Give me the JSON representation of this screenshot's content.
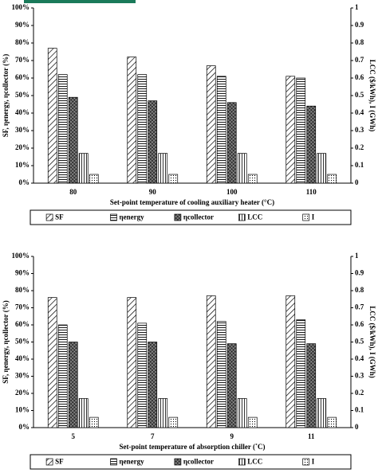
{
  "chart_data": [
    {
      "type": "bar",
      "x_label": "Set-point temperature of cooling auxiliary heater (°C)",
      "y_label": "SF, ηenergy, ηcollector (%)",
      "y2_label": "LCC ($/kWh), I (GWh)",
      "categories": [
        "80",
        "90",
        "100",
        "110"
      ],
      "series": [
        {
          "name": "SF",
          "color": "#000000",
          "pattern": "diag",
          "values": [
            77,
            72,
            67,
            61
          ]
        },
        {
          "name": "ηenergy",
          "color": "#000000",
          "pattern": "horiz",
          "values": [
            62,
            62,
            61,
            60
          ]
        },
        {
          "name": "ηcollector",
          "color": "#000000",
          "pattern": "cross",
          "values": [
            49,
            47,
            46,
            44
          ]
        },
        {
          "name": "LCC",
          "color": "#000000",
          "pattern": "vert",
          "axis": "y2",
          "values": [
            0.17,
            0.17,
            0.17,
            0.17
          ]
        },
        {
          "name": "I",
          "color": "#000000",
          "pattern": "dot",
          "axis": "y2",
          "values": [
            0.05,
            0.05,
            0.05,
            0.05
          ]
        }
      ],
      "ylim": [
        0,
        100
      ],
      "yticks": [
        {
          "value": 0,
          "label": "0%"
        },
        {
          "value": 10,
          "label": "10%"
        },
        {
          "value": 20,
          "label": "20%"
        },
        {
          "value": 30,
          "label": "30%"
        },
        {
          "value": 40,
          "label": "40%"
        },
        {
          "value": 50,
          "label": "50%"
        },
        {
          "value": 60,
          "label": "60%"
        },
        {
          "value": 70,
          "label": "70%"
        },
        {
          "value": 80,
          "label": "80%"
        },
        {
          "value": 90,
          "label": "90%"
        },
        {
          "value": 100,
          "label": "100%"
        }
      ],
      "y2lim": [
        0,
        1
      ],
      "y2ticks": [
        0,
        0.1,
        0.2,
        0.3,
        0.4,
        0.5,
        0.6,
        0.7,
        0.8,
        0.9,
        1
      ]
    },
    {
      "type": "bar",
      "x_label": "Set-point temperature of absorption chiller (˚C)",
      "y_label": "SF, ηenergy, ηcollector (%)",
      "y2_label": "LCC ($/kWh), I (GWh)",
      "categories": [
        "5",
        "7",
        "9",
        "11"
      ],
      "series": [
        {
          "name": "SF",
          "color": "#000000",
          "pattern": "diag",
          "values": [
            76,
            76,
            77,
            77
          ]
        },
        {
          "name": "ηenergy",
          "color": "#000000",
          "pattern": "horiz",
          "values": [
            60,
            61,
            62,
            63
          ]
        },
        {
          "name": "ηcollector",
          "color": "#000000",
          "pattern": "cross",
          "values": [
            50,
            50,
            49,
            49
          ]
        },
        {
          "name": "LCC",
          "color": "#000000",
          "pattern": "vert",
          "axis": "y2",
          "values": [
            0.17,
            0.17,
            0.17,
            0.17
          ]
        },
        {
          "name": "I",
          "color": "#000000",
          "pattern": "dot",
          "axis": "y2",
          "values": [
            0.06,
            0.06,
            0.06,
            0.06
          ]
        }
      ],
      "ylim": [
        0,
        100
      ],
      "yticks": [
        {
          "value": 0,
          "label": "0%"
        },
        {
          "value": 10,
          "label": "10%"
        },
        {
          "value": 20,
          "label": "20%"
        },
        {
          "value": 30,
          "label": "30%"
        },
        {
          "value": 40,
          "label": "40%"
        },
        {
          "value": 50,
          "label": "50%"
        },
        {
          "value": 60,
          "label": "60%"
        },
        {
          "value": 70,
          "label": "70%"
        },
        {
          "value": 80,
          "label": "80%"
        },
        {
          "value": 90,
          "label": "90%"
        },
        {
          "value": 100,
          "label": "100%"
        }
      ],
      "y2lim": [
        0,
        1
      ],
      "y2ticks": [
        0,
        0.1,
        0.2,
        0.3,
        0.4,
        0.5,
        0.6,
        0.7,
        0.8,
        0.9,
        1
      ]
    }
  ]
}
